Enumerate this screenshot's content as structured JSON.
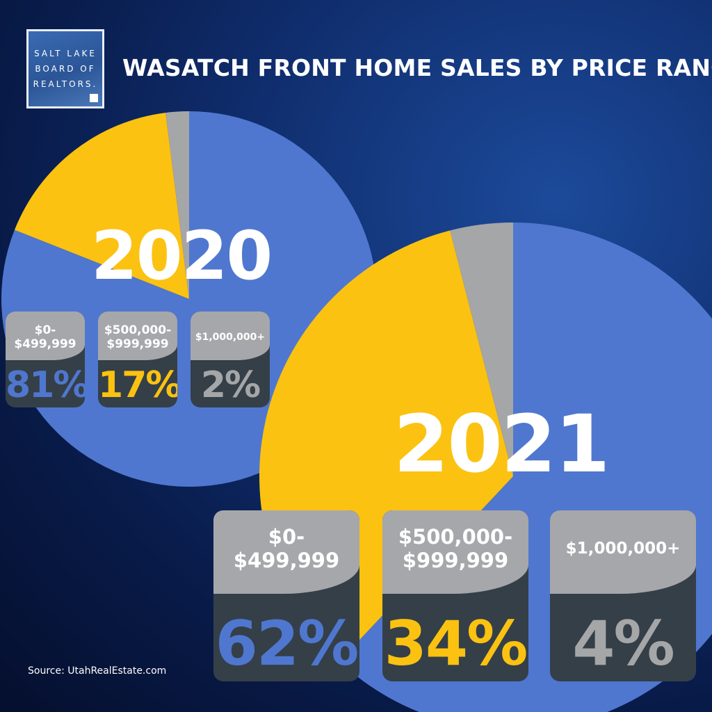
{
  "logo": {
    "lines": [
      "SALT LAKE",
      "BOARD OF",
      "REALTORS."
    ]
  },
  "title": "WASATCH FRONT HOME SALES BY PRICE RANGE",
  "source": "Source: UtahRealEstate.com",
  "colors": {
    "blue": "#4f77cf",
    "yellow": "#fbc211",
    "gray": "#a5a6a8",
    "card": "#343f48",
    "card_top": "#a6a7ab"
  },
  "chart_data": [
    {
      "type": "pie",
      "title": "2020",
      "categories": [
        "$0-$499,999",
        "$500,000-$999,999",
        "$1,000,000+"
      ],
      "values": [
        81,
        17,
        2
      ],
      "value_labels": [
        "81%",
        "17%",
        "2%"
      ],
      "colors": [
        "#4f77cf",
        "#fbc211",
        "#a5a6a8"
      ]
    },
    {
      "type": "pie",
      "title": "2021",
      "categories": [
        "$0-$499,999",
        "$500,000-$999,999",
        "$1,000,000+"
      ],
      "values": [
        62,
        34,
        4
      ],
      "value_labels": [
        "62%",
        "34%",
        "4%"
      ],
      "colors": [
        "#4f77cf",
        "#fbc211",
        "#a5a6a8"
      ]
    }
  ],
  "cards_2020": [
    {
      "line1": "$0-",
      "line2": "$499,999",
      "pct": "81%"
    },
    {
      "line1": "$500,000-",
      "line2": "$999,999",
      "pct": "17%"
    },
    {
      "line1": "$1,000,000+",
      "line2": "",
      "pct": "2%"
    }
  ],
  "cards_2021": [
    {
      "line1": "$0-",
      "line2": "$499,999",
      "pct": "62%"
    },
    {
      "line1": "$500,000-",
      "line2": "$999,999",
      "pct": "34%"
    },
    {
      "line1": "$1,000,000+",
      "line2": "",
      "pct": "4%"
    }
  ]
}
